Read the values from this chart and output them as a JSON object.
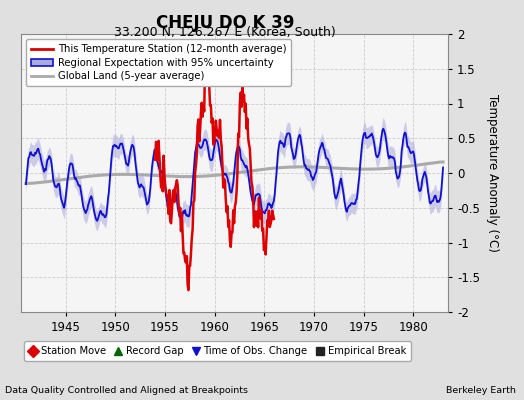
{
  "title": "CHEJU DO K 39",
  "subtitle": "33.200 N, 126.267 E (Korea, South)",
  "ylabel": "Temperature Anomaly (°C)",
  "xlabel_left": "Data Quality Controlled and Aligned at Breakpoints",
  "xlabel_right": "Berkeley Earth",
  "xlim": [
    1940.5,
    1983.5
  ],
  "ylim": [
    -2,
    2
  ],
  "yticks": [
    -2,
    -1.5,
    -1,
    -0.5,
    0,
    0.5,
    1,
    1.5,
    2
  ],
  "xticks": [
    1945,
    1950,
    1955,
    1960,
    1965,
    1970,
    1975,
    1980
  ],
  "bg_color": "#e0e0e0",
  "plot_bg_color": "#f5f5f5",
  "grid_color": "#cccccc",
  "station_color": "#dd0000",
  "regional_color": "#1111cc",
  "regional_fill_color": "#aaaadd",
  "global_color": "#aaaaaa",
  "legend_station_label": "This Temperature Station (12-month average)",
  "legend_regional_label": "Regional Expectation with 95% uncertainty",
  "legend_global_label": "Global Land (5-year average)",
  "bottom_legend": [
    {
      "marker": "D",
      "color": "#dd0000",
      "label": "Station Move"
    },
    {
      "marker": "^",
      "color": "#006600",
      "label": "Record Gap"
    },
    {
      "marker": "v",
      "color": "#1111cc",
      "label": "Time of Obs. Change"
    },
    {
      "marker": "s",
      "color": "#222222",
      "label": "Empirical Break"
    }
  ],
  "station_xstart": 1954.0,
  "station_xend": 1966.0
}
